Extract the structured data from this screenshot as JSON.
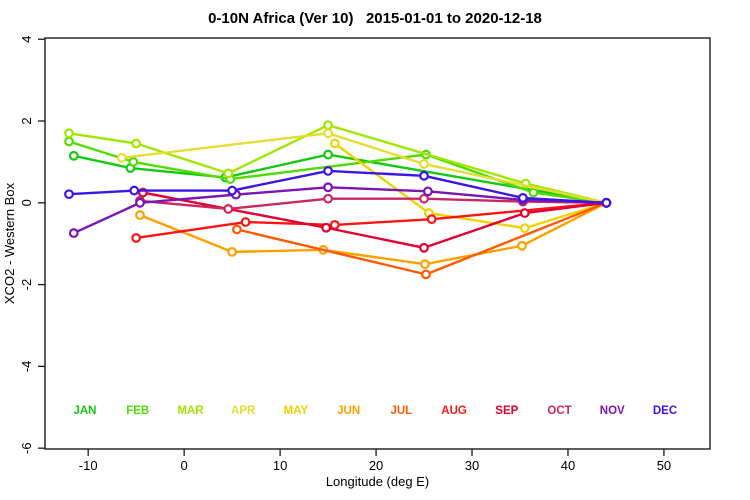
{
  "window": {
    "title": "0-10N Africa (Ver 10)   2015-01-01 to 2020-12-18"
  },
  "chart_data": {
    "type": "line",
    "title": "0-10N Africa (Ver 10)   2015-01-01 to 2020-12-18",
    "xlabel": "Longitude (deg E)",
    "ylabel": "XCO2 - Western Box",
    "xlim": [
      -14.5,
      54.8
    ],
    "ylim": [
      -6.02,
      4.03
    ],
    "xticks": [
      -10,
      0,
      10,
      20,
      30,
      40,
      50
    ],
    "yticks": [
      -6,
      -4,
      -2,
      0,
      2,
      4
    ],
    "grid": "off",
    "legend_position": "bottom-inside-row",
    "marker": "open-circle-white-fill",
    "series": [
      {
        "name": "JAN",
        "color": "#14C814",
        "points": [
          [
            -11.5,
            1.15
          ],
          [
            -5.6,
            0.85
          ],
          [
            4.3,
            0.62
          ],
          [
            15,
            1.18
          ],
          [
            44,
            0
          ]
        ]
      },
      {
        "name": "FEB",
        "color": "#50DC00",
        "points": [
          [
            -12,
            1.5
          ],
          [
            -5.3,
            1.0
          ],
          [
            4.8,
            0.58
          ],
          [
            25.2,
            1.18
          ],
          [
            36.4,
            0.25
          ],
          [
            44,
            0
          ]
        ]
      },
      {
        "name": "MAR",
        "color": "#A0E600",
        "points": [
          [
            -12,
            1.7
          ],
          [
            -5,
            1.45
          ],
          [
            4.6,
            0.72
          ],
          [
            15,
            1.9
          ],
          [
            35.6,
            0.47
          ],
          [
            44,
            0
          ]
        ]
      },
      {
        "name": "APR",
        "color": "#E6DC32",
        "points": [
          [
            -6.5,
            1.1
          ],
          [
            15,
            1.7
          ],
          [
            25,
            0.95
          ],
          [
            44,
            0
          ]
        ]
      },
      {
        "name": "MAY",
        "color": "#F0D200",
        "points": [
          [
            15.7,
            1.45
          ],
          [
            25.5,
            -0.25
          ],
          [
            35.5,
            -0.62
          ],
          [
            44,
            0
          ]
        ]
      },
      {
        "name": "JUN",
        "color": "#FFA000",
        "points": [
          [
            -4.6,
            -0.3
          ],
          [
            5,
            -1.2
          ],
          [
            14.5,
            -1.15
          ],
          [
            25.1,
            -1.5
          ],
          [
            35.2,
            -1.05
          ],
          [
            44,
            0
          ]
        ]
      },
      {
        "name": "JUL",
        "color": "#FF5A00",
        "points": [
          [
            5.5,
            -0.65
          ],
          [
            25.2,
            -1.75
          ],
          [
            44,
            0
          ]
        ]
      },
      {
        "name": "AUG",
        "color": "#FF1414",
        "points": [
          [
            -5,
            -0.86
          ],
          [
            6.4,
            -0.47
          ],
          [
            15.7,
            -0.54
          ],
          [
            25.8,
            -0.4
          ],
          [
            44,
            0
          ]
        ]
      },
      {
        "name": "SEP",
        "color": "#E10032",
        "points": [
          [
            -4.3,
            0.25
          ],
          [
            14.8,
            -0.61
          ],
          [
            25,
            -1.1
          ],
          [
            35.5,
            -0.25
          ],
          [
            44,
            0
          ]
        ]
      },
      {
        "name": "OCT",
        "color": "#C82864",
        "points": [
          [
            -4.6,
            0.05
          ],
          [
            4.6,
            -0.15
          ],
          [
            15,
            0.1
          ],
          [
            25,
            0.1
          ],
          [
            35.3,
            0.03
          ],
          [
            44,
            0
          ]
        ]
      },
      {
        "name": "NOV",
        "color": "#7D14B4",
        "points": [
          [
            -11.5,
            -0.74
          ],
          [
            -4.6,
            0.0
          ],
          [
            5.4,
            0.2
          ],
          [
            15,
            0.38
          ],
          [
            25.4,
            0.28
          ],
          [
            35.3,
            0.07
          ],
          [
            44,
            0
          ]
        ]
      },
      {
        "name": "DEC",
        "color": "#3C14E6",
        "points": [
          [
            -12,
            0.21
          ],
          [
            -5.2,
            0.3
          ],
          [
            5,
            0.3
          ],
          [
            15,
            0.78
          ],
          [
            25,
            0.66
          ],
          [
            35.3,
            0.12
          ],
          [
            44,
            0
          ]
        ]
      }
    ],
    "legend": [
      {
        "label": "JAN",
        "color": "#14C814"
      },
      {
        "label": "FEB",
        "color": "#50DC00"
      },
      {
        "label": "MAR",
        "color": "#A0E600"
      },
      {
        "label": "APR",
        "color": "#E6DC32"
      },
      {
        "label": "MAY",
        "color": "#F0D200"
      },
      {
        "label": "JUN",
        "color": "#FFA000"
      },
      {
        "label": "JUL",
        "color": "#FF5A00"
      },
      {
        "label": "AUG",
        "color": "#FF1414"
      },
      {
        "label": "SEP",
        "color": "#E10032"
      },
      {
        "label": "OCT",
        "color": "#C82864"
      },
      {
        "label": "NOV",
        "color": "#7D14B4"
      },
      {
        "label": "DEC",
        "color": "#3C14E6"
      }
    ]
  }
}
